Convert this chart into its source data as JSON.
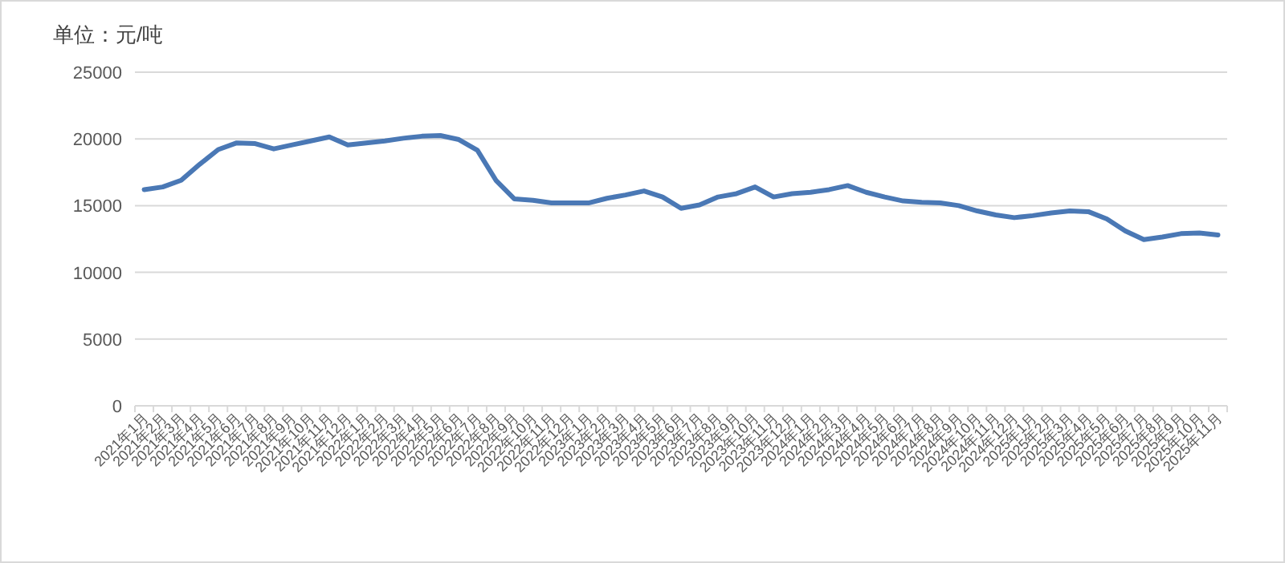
{
  "chart_data": {
    "type": "line",
    "title": "单位：元/吨",
    "categories": [
      "2021年1月",
      "2021年2月",
      "2021年3月",
      "2021年4月",
      "2021年5月",
      "2021年6月",
      "2021年7月",
      "2021年8月",
      "2021年9月",
      "2021年10月",
      "2021年11月",
      "2021年12月",
      "2022年1月",
      "2022年2月",
      "2022年3月",
      "2022年4月",
      "2022年5月",
      "2022年6月",
      "2022年7月",
      "2022年8月",
      "2022年9月",
      "2022年10月",
      "2022年11月",
      "2022年12月",
      "2023年1月",
      "2023年2月",
      "2023年3月",
      "2023年4月",
      "2023年5月",
      "2023年6月",
      "2023年7月",
      "2023年8月",
      "2023年9月",
      "2023年10月",
      "2023年11月",
      "2023年12月",
      "2024年1月",
      "2024年2月",
      "2024年3月",
      "2024年4月",
      "2024年5月",
      "2024年6月",
      "2024年7月",
      "2024年8月",
      "2024年9月",
      "2024年10月",
      "2024年11月",
      "2024年12月",
      "2025年1月",
      "2025年2月",
      "2025年3月",
      "2025年4月",
      "2025年5月",
      "2025年6月",
      "2025年7月",
      "2025年8月",
      "2025年9月",
      "2025年10月",
      "2025年11月"
    ],
    "values": [
      16200,
      16400,
      16900,
      18100,
      19200,
      19700,
      19650,
      19250,
      19550,
      19850,
      20150,
      19550,
      19700,
      19850,
      20050,
      20200,
      20250,
      19950,
      19150,
      16900,
      15500,
      15400,
      15200,
      15200,
      15200,
      15550,
      15800,
      16100,
      15650,
      14800,
      15050,
      15650,
      15900,
      16400,
      15650,
      15900,
      16000,
      16200,
      16500,
      16000,
      15650,
      15350,
      15250,
      15200,
      15000,
      14600,
      14300,
      14100,
      14250,
      14450,
      14600,
      14550,
      14000,
      13100,
      12450,
      12650,
      12900,
      12950,
      12800
    ],
    "color": "#4a78b5",
    "ylim": [
      0,
      25000
    ],
    "yticks": [
      0,
      5000,
      10000,
      15000,
      20000,
      25000
    ],
    "grid": "y",
    "line_style": "solid"
  }
}
